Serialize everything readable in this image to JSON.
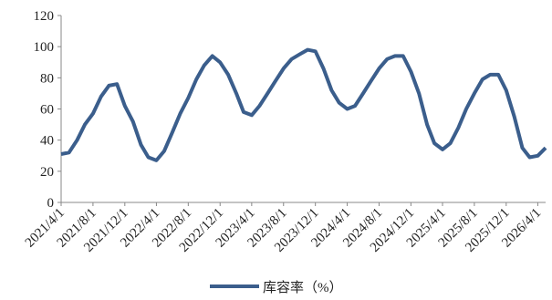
{
  "chart_data": {
    "type": "line",
    "x": [
      "2021/4/1",
      "2021/5/1",
      "2021/6/1",
      "2021/7/1",
      "2021/8/1",
      "2021/9/1",
      "2021/10/1",
      "2021/11/1",
      "2021/12/1",
      "2022/1/1",
      "2022/2/1",
      "2022/3/1",
      "2022/4/1",
      "2022/5/1",
      "2022/6/1",
      "2022/7/1",
      "2022/8/1",
      "2022/9/1",
      "2022/10/1",
      "2022/11/1",
      "2022/12/1",
      "2023/1/1",
      "2023/2/1",
      "2023/3/1",
      "2023/4/1",
      "2023/5/1",
      "2023/6/1",
      "2023/7/1",
      "2023/8/1",
      "2023/9/1",
      "2023/10/1",
      "2023/11/1",
      "2023/12/1",
      "2024/1/1",
      "2024/2/1",
      "2024/3/1",
      "2024/4/1",
      "2024/5/1",
      "2024/6/1",
      "2024/7/1",
      "2024/8/1",
      "2024/9/1",
      "2024/10/1",
      "2024/11/1",
      "2024/12/1",
      "2025/1/1",
      "2025/2/1",
      "2025/3/1",
      "2025/4/1",
      "2025/5/1",
      "2025/6/1",
      "2025/7/1",
      "2025/8/1",
      "2025/9/1",
      "2025/10/1",
      "2025/11/1",
      "2025/12/1",
      "2026/1/1",
      "2026/2/1",
      "2026/3/1",
      "2026/4/1",
      "2026/5/1"
    ],
    "series": [
      {
        "name": "库容率（%）",
        "color": "#3b5e8c",
        "values": [
          31,
          32,
          40,
          50,
          57,
          68,
          75,
          76,
          62,
          52,
          37,
          29,
          27,
          33,
          45,
          57,
          67,
          79,
          88,
          94,
          90,
          82,
          70,
          58,
          56,
          62,
          70,
          78,
          86,
          92,
          95,
          98,
          97,
          86,
          72,
          64,
          60,
          62,
          70,
          78,
          86,
          92,
          94,
          94,
          84,
          70,
          50,
          38,
          34,
          38,
          48,
          60,
          70,
          79,
          82,
          82,
          72,
          55,
          35,
          29,
          30,
          35
        ]
      }
    ],
    "xlim": [
      "2021/4/1",
      "2026/5/1"
    ],
    "xticks": [
      "2021/4/1",
      "2021/8/1",
      "2021/12/1",
      "2022/4/1",
      "2022/8/1",
      "2022/12/1",
      "2023/4/1",
      "2023/8/1",
      "2023/12/1",
      "2024/4/1",
      "2024/8/1",
      "2024/12/1",
      "2025/4/1",
      "2025/8/1",
      "2025/12/1",
      "2026/4/1"
    ],
    "ylim": [
      0,
      120
    ],
    "yticks": [
      0,
      20,
      40,
      60,
      80,
      100,
      120
    ],
    "legend": "bottom"
  }
}
